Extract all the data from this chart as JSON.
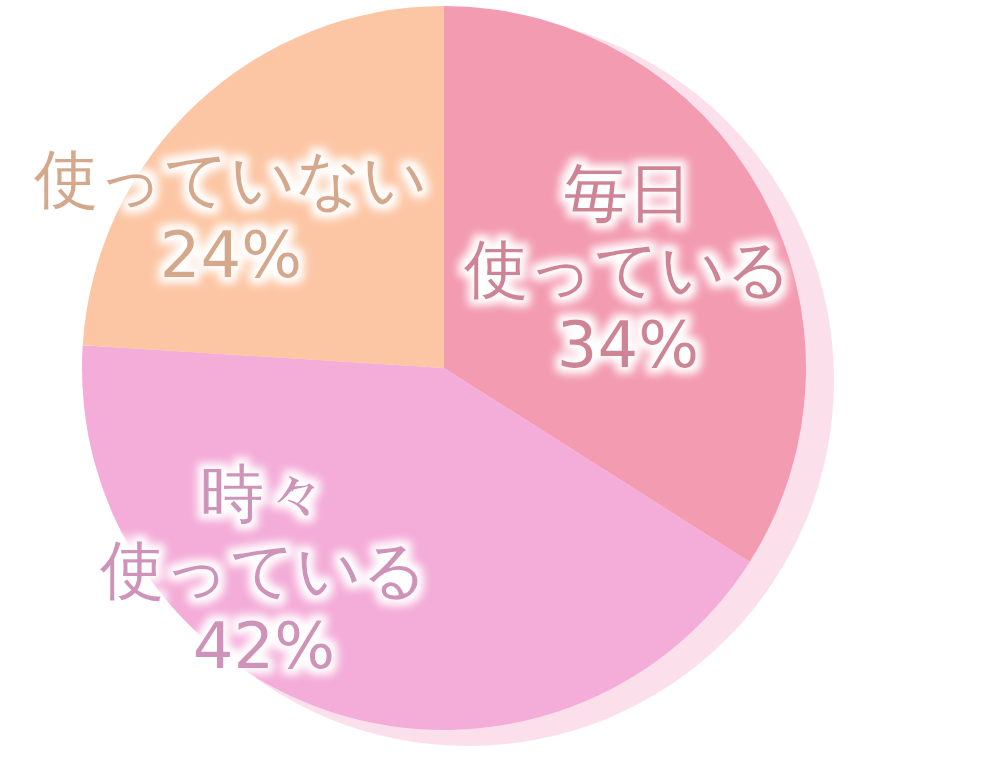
{
  "chart_data": {
    "type": "pie",
    "categories": [
      "毎日使っている",
      "時々使っている",
      "使っていない"
    ],
    "values": [
      34,
      42,
      24
    ],
    "colors": [
      "#f39bb0",
      "#f4acd8",
      "#fcc6a4"
    ],
    "value_labels": [
      "34%",
      "42%",
      "24%"
    ]
  }
}
